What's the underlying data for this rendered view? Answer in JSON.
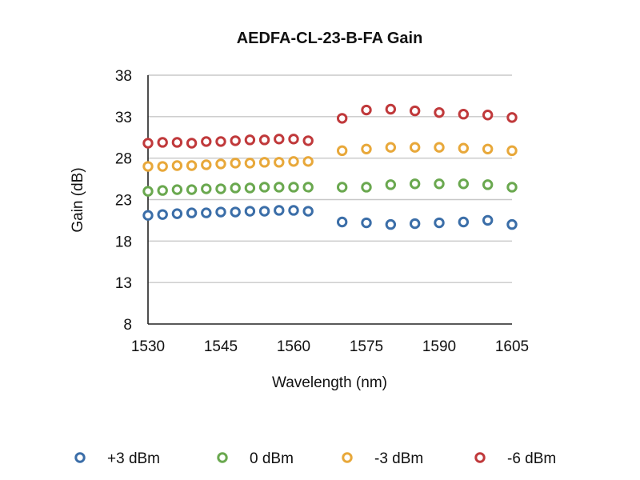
{
  "chart_data": {
    "type": "scatter",
    "title": "AEDFA-CL-23-B-FA Gain",
    "xlabel": "Wavelength (nm)",
    "ylabel": "Gain (dB)",
    "xlim": [
      1530,
      1605
    ],
    "ylim": [
      8,
      38
    ],
    "xticks": [
      "1530",
      "1545",
      "1560",
      "1575",
      "1590",
      "1605"
    ],
    "yticks": [
      "38",
      "33",
      "28",
      "23",
      "18",
      "13",
      "8"
    ],
    "grid": "horizontal",
    "legend_position": "bottom",
    "x": [
      1530,
      1533,
      1536,
      1539,
      1542,
      1545,
      1548,
      1551,
      1554,
      1557,
      1560,
      1563,
      1570,
      1575,
      1580,
      1585,
      1590,
      1595,
      1600,
      1605
    ],
    "series": [
      {
        "name": "+3 dBm",
        "color": "#3b6ea8",
        "values": [
          21.1,
          21.2,
          21.3,
          21.4,
          21.4,
          21.5,
          21.5,
          21.6,
          21.6,
          21.7,
          21.7,
          21.6,
          20.3,
          20.2,
          20.0,
          20.1,
          20.2,
          20.3,
          20.5,
          20.0
        ]
      },
      {
        "name": "0 dBm",
        "color": "#6aa84f",
        "values": [
          24.0,
          24.1,
          24.2,
          24.2,
          24.3,
          24.3,
          24.4,
          24.4,
          24.5,
          24.5,
          24.5,
          24.5,
          24.5,
          24.5,
          24.8,
          24.9,
          24.9,
          24.9,
          24.8,
          24.5
        ]
      },
      {
        "name": "-3 dBm",
        "color": "#e8a83a",
        "values": [
          27.0,
          27.0,
          27.1,
          27.1,
          27.2,
          27.3,
          27.4,
          27.4,
          27.5,
          27.5,
          27.6,
          27.6,
          28.9,
          29.1,
          29.3,
          29.3,
          29.3,
          29.2,
          29.1,
          28.9
        ]
      },
      {
        "name": "-6 dBm",
        "color": "#c0393b",
        "values": [
          29.8,
          29.9,
          29.9,
          29.8,
          30.0,
          30.0,
          30.1,
          30.2,
          30.2,
          30.3,
          30.3,
          30.1,
          32.8,
          33.8,
          33.9,
          33.7,
          33.5,
          33.3,
          33.2,
          32.9
        ]
      }
    ]
  }
}
